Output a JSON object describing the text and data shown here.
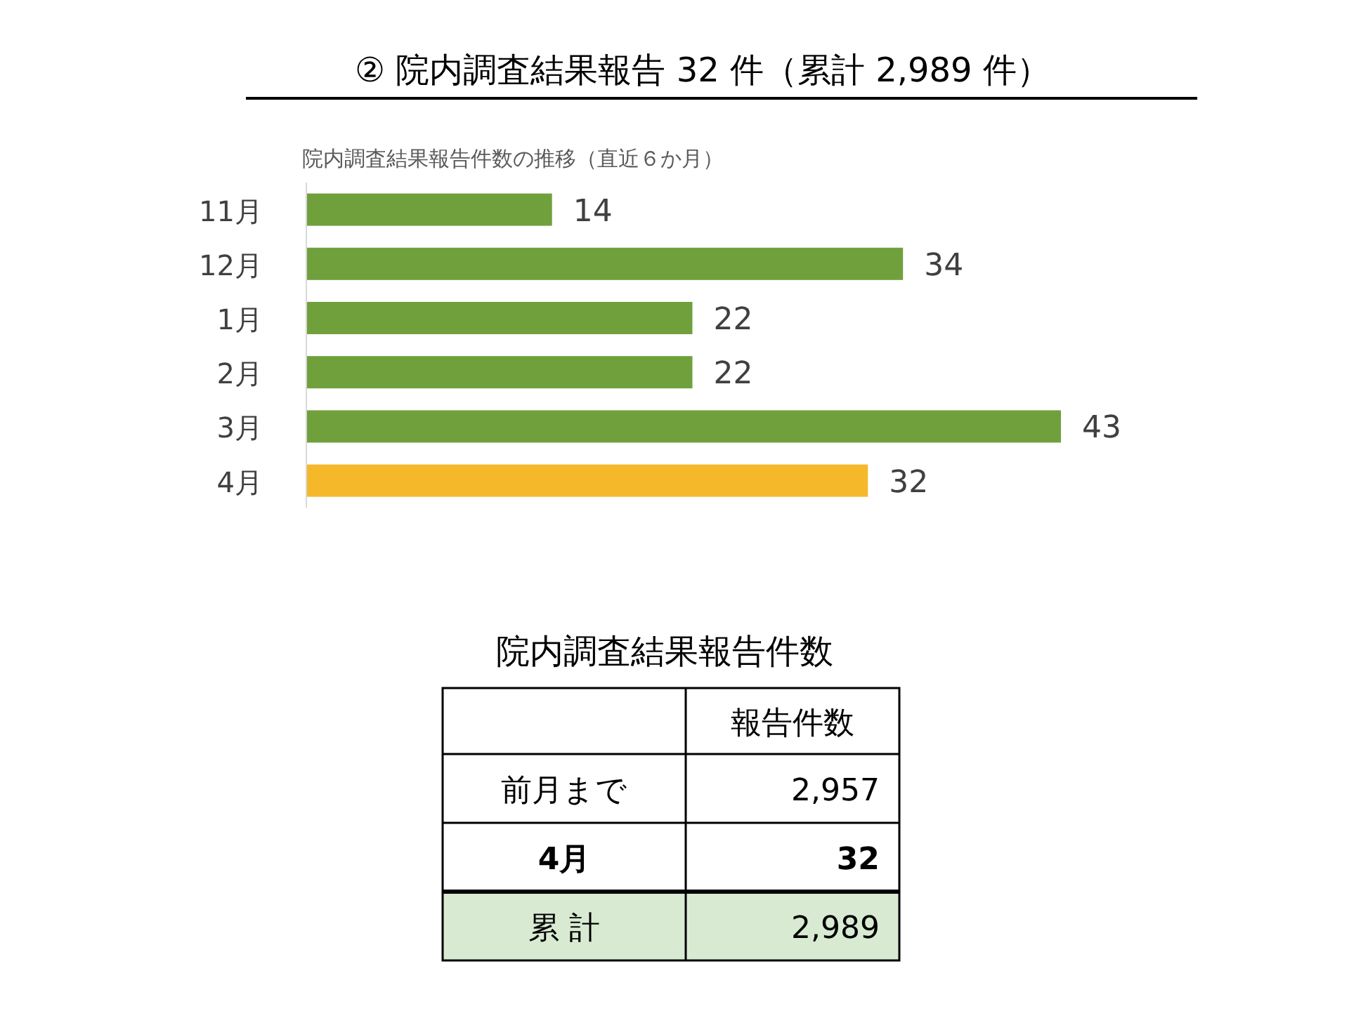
{
  "chart_data": [
    {
      "type": "bar",
      "orientation": "horizontal",
      "title": "② 院内調査結果報告 32 件（累計 2,989 件）",
      "subtitle": "院内調査結果報告件数の推移（直近６か月）",
      "categories": [
        "11月",
        "12月",
        "1月",
        "2月",
        "3月",
        "4月"
      ],
      "values": [
        14,
        34,
        22,
        22,
        43,
        32
      ],
      "colors": [
        "#70a03c",
        "#70a03c",
        "#70a03c",
        "#70a03c",
        "#70a03c",
        "#f4b82a"
      ],
      "data_labels": true
    },
    {
      "type": "other",
      "title": "院内調査結果報告件数",
      "color": "#d9ead3",
      "annotations": [
        "報告件数",
        "前月まで",
        "2,957",
        "4月",
        "32",
        "累 計",
        "2,989"
      ]
    }
  ]
}
